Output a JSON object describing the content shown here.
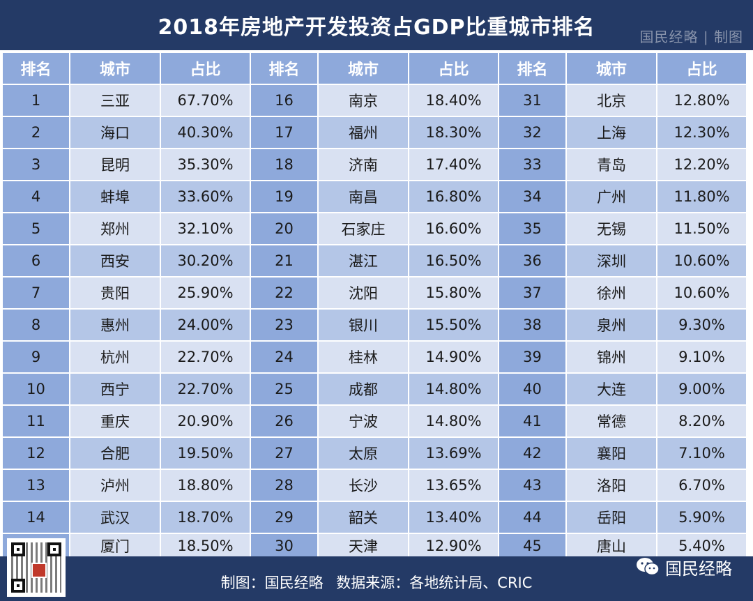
{
  "title": "2018年房地产开发投资占GDP比重城市排名",
  "title_credit": "国民经略 | 制图",
  "headers": [
    "排名",
    "城市",
    "占比",
    "排名",
    "城市",
    "占比",
    "排名",
    "城市",
    "占比"
  ],
  "rows": [
    [
      "1",
      "三亚",
      "67.70%",
      "16",
      "南京",
      "18.40%",
      "31",
      "北京",
      "12.80%"
    ],
    [
      "2",
      "海口",
      "40.30%",
      "17",
      "福州",
      "18.30%",
      "32",
      "上海",
      "12.30%"
    ],
    [
      "3",
      "昆明",
      "35.30%",
      "18",
      "济南",
      "17.40%",
      "33",
      "青岛",
      "12.20%"
    ],
    [
      "4",
      "蚌埠",
      "33.60%",
      "19",
      "南昌",
      "16.80%",
      "34",
      "广州",
      "11.80%"
    ],
    [
      "5",
      "郑州",
      "32.10%",
      "20",
      "石家庄",
      "16.60%",
      "35",
      "无锡",
      "11.50%"
    ],
    [
      "6",
      "西安",
      "30.20%",
      "21",
      "湛江",
      "16.50%",
      "36",
      "深圳",
      "10.60%"
    ],
    [
      "7",
      "贵阳",
      "25.90%",
      "22",
      "沈阳",
      "15.80%",
      "37",
      "徐州",
      "10.60%"
    ],
    [
      "8",
      "惠州",
      "24.00%",
      "23",
      "银川",
      "15.50%",
      "38",
      "泉州",
      "9.30%"
    ],
    [
      "9",
      "杭州",
      "22.70%",
      "24",
      "桂林",
      "14.90%",
      "39",
      "锦州",
      "9.10%"
    ],
    [
      "10",
      "西宁",
      "22.70%",
      "25",
      "成都",
      "14.80%",
      "40",
      "大连",
      "9.00%"
    ],
    [
      "11",
      "重庆",
      "20.90%",
      "26",
      "宁波",
      "14.80%",
      "41",
      "常德",
      "8.20%"
    ],
    [
      "12",
      "合肥",
      "19.50%",
      "27",
      "太原",
      "13.69%",
      "42",
      "襄阳",
      "7.10%"
    ],
    [
      "13",
      "泸州",
      "18.80%",
      "28",
      "长沙",
      "13.65%",
      "43",
      "洛阳",
      "6.70%"
    ],
    [
      "14",
      "武汉",
      "18.70%",
      "29",
      "韶关",
      "13.40%",
      "44",
      "岳阳",
      "5.90%"
    ],
    [
      "15",
      "厦门",
      "18.50%",
      "30",
      "天津",
      "12.90%",
      "45",
      "唐山",
      "5.40%"
    ]
  ],
  "footer": {
    "maker_label": "制图：",
    "maker": "国民经略",
    "source_label": "数据来源：",
    "source": "各地统计局、CRIC"
  },
  "brand": "国民经略",
  "icons": {
    "wechat": "wechat-icon",
    "qr": "qr-code-icon"
  },
  "colors": {
    "header_bg": "#243a66",
    "rank_col": "#8ea9db",
    "row_light": "#d9e1f2",
    "row_dark": "#b4c6e7"
  }
}
